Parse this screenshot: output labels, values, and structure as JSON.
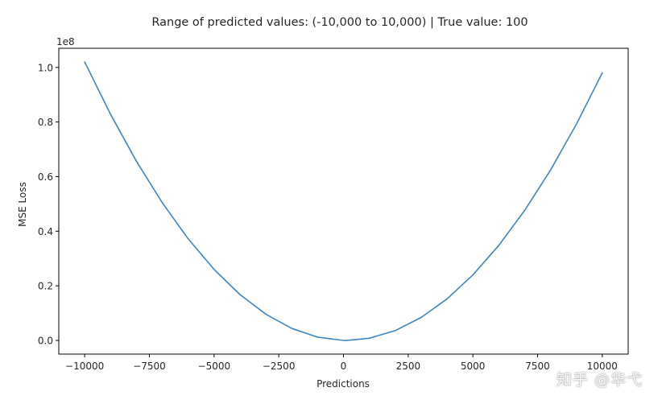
{
  "chart_data": {
    "type": "line",
    "title": "Range of predicted values: (-10,000 to 10,000) | True value: 100",
    "xlabel": "Predictions",
    "ylabel": "MSE Loss",
    "y_offset_label": "1e8",
    "x_tick_values": [
      -10000,
      -7500,
      -5000,
      -2500,
      0,
      2500,
      5000,
      7500,
      10000
    ],
    "x_tick_labels": [
      "−10000",
      "−7500",
      "−5000",
      "−2500",
      "0",
      "2500",
      "5000",
      "7500",
      "10000"
    ],
    "y_tick_values": [
      0.0,
      0.2,
      0.4,
      0.6,
      0.8,
      1.0
    ],
    "y_tick_labels": [
      "0.0",
      "0.2",
      "0.4",
      "0.6",
      "0.8",
      "1.0"
    ],
    "xlim": [
      -11000,
      11000
    ],
    "ylim": [
      -0.05,
      1.07
    ],
    "grid": false,
    "series": [
      {
        "color": "#3b86c2",
        "x": [
          -10000,
          -9000,
          -8000,
          -7000,
          -6000,
          -5000,
          -4000,
          -3000,
          -2000,
          -1000,
          0,
          100,
          1000,
          2000,
          3000,
          4000,
          5000,
          6000,
          7000,
          8000,
          9000,
          10000
        ],
        "y": [
          1.0201,
          0.8281,
          0.6561,
          0.5041,
          0.3721,
          0.2601,
          0.1681,
          0.0961,
          0.0441,
          0.0121,
          0.0001,
          0.0,
          0.0081,
          0.0361,
          0.0841,
          0.1521,
          0.2401,
          0.3481,
          0.4761,
          0.6241,
          0.7921,
          0.9801
        ]
      }
    ]
  },
  "watermark": "知乎 @华弋"
}
